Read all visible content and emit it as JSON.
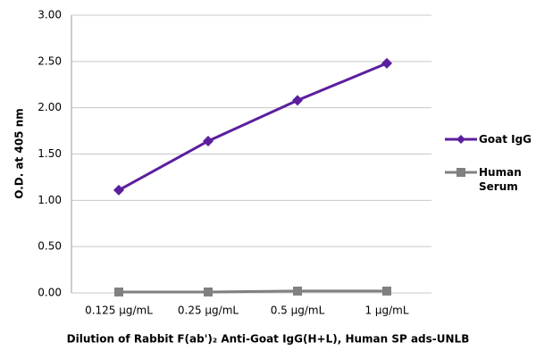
{
  "chart_data": {
    "type": "line",
    "x_label": "Dilution of Rabbit F(ab')₂ Anti-Goat IgG(H+L), Human SP ads-UNLB",
    "y_label": "O.D. at 405 nm",
    "categories": [
      "0.125 μg/mL",
      "0.25 μg/mL",
      "0.5 μg/mL",
      "1 μg/mL"
    ],
    "series": [
      {
        "name": "Goat IgG",
        "color": "#5b1f9e",
        "marker": "diamond",
        "values": [
          1.11,
          1.64,
          2.08,
          2.48
        ]
      },
      {
        "name": "Human Serum",
        "color": "#808080",
        "marker": "square",
        "values": [
          0.01,
          0.01,
          0.02,
          0.02
        ]
      }
    ],
    "ylim": [
      0,
      3
    ],
    "yticks": [
      {
        "value": 0,
        "label": "0.00"
      },
      {
        "value": 0.5,
        "label": "0.50"
      },
      {
        "value": 1,
        "label": "1.00"
      },
      {
        "value": 1.5,
        "label": "1.50"
      },
      {
        "value": 2,
        "label": "2.00"
      },
      {
        "value": 2.5,
        "label": "2.50"
      },
      {
        "value": 3,
        "label": "3.00"
      }
    ],
    "grid": true,
    "legend": "right"
  }
}
